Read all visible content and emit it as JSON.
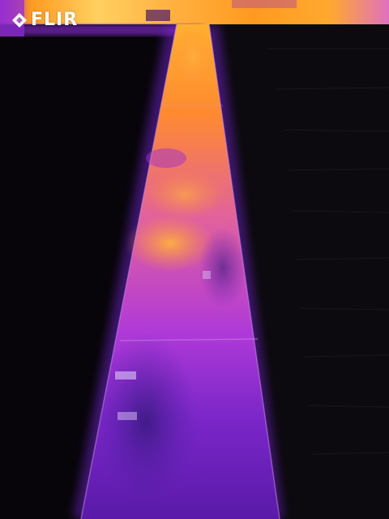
{
  "brand": {
    "logo_text": "FLIR"
  },
  "image": {
    "subject": "thermal-image-walkway",
    "palette": {
      "cold": "#0a0612",
      "cool": "#3a1a6a",
      "mid": "#8a2ad0",
      "warm": "#d04ec8",
      "hot": "#ffa020",
      "hottest": "#ffe070"
    }
  }
}
